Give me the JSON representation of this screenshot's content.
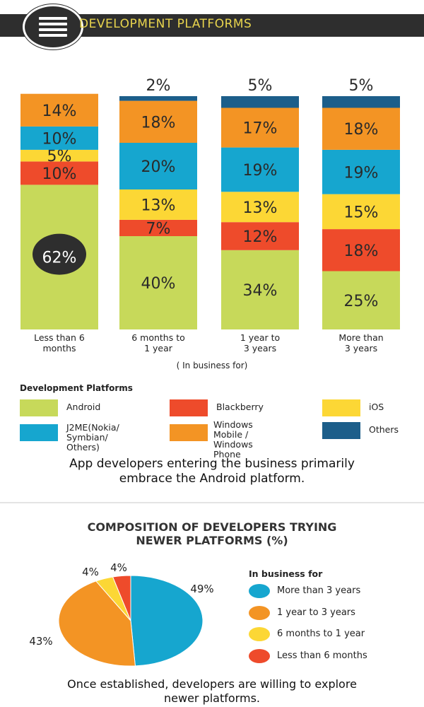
{
  "header": {
    "title": "DEVELOPMENT PLATFORMS"
  },
  "colors": {
    "Android": "#c7d95a",
    "Blackberry": "#ee4b2b",
    "iOS": "#fcd735",
    "J2ME": "#16a6cf",
    "Windows": "#f39424",
    "Others": "#1c5e8a"
  },
  "chart_data": [
    {
      "type": "bar",
      "stacked": true,
      "categories": [
        "Less than 6\nmonths",
        "6 months to\n1 year",
        "1 year to\n3 years",
        "More than\n3 years"
      ],
      "series": [
        {
          "name": "Android",
          "color": "#c7d95a",
          "values": [
            62,
            40,
            34,
            25
          ]
        },
        {
          "name": "Blackberry",
          "color": "#ee4b2b",
          "values": [
            10,
            7,
            12,
            18
          ]
        },
        {
          "name": "iOS",
          "color": "#fcd735",
          "values": [
            5,
            13,
            13,
            15
          ]
        },
        {
          "name": "J2ME(Nokia/\nSymbian/ Others)",
          "color": "#16a6cf",
          "values": [
            10,
            20,
            19,
            19
          ]
        },
        {
          "name": "Windows Mobile /\nWindows Phone",
          "color": "#f39424",
          "values": [
            14,
            18,
            17,
            18
          ]
        },
        {
          "name": "Others",
          "color": "#1c5e8a",
          "values": [
            0,
            2,
            5,
            5
          ]
        }
      ],
      "value_labels": [
        [
          "62%",
          "40%",
          "34%",
          "25%"
        ],
        [
          "10%",
          "7%",
          "12%",
          "18%"
        ],
        [
          "5%",
          "13%",
          "13%",
          "15%"
        ],
        [
          "10%",
          "20%",
          "19%",
          "19%"
        ],
        [
          "14%",
          "18%",
          "17%",
          "18%"
        ],
        [
          "",
          "2%",
          "5%",
          "5%"
        ]
      ],
      "xlabel": "( In business for)",
      "legend_title": "Development Platforms"
    },
    {
      "type": "pie",
      "title": "COMPOSITION OF DEVELOPERS TRYING\nNEWER PLATFORMS (%)",
      "legend_title": "In business for",
      "slices": [
        {
          "label": "More than 3 years",
          "value": 49,
          "display": "49%",
          "color": "#16a6cf"
        },
        {
          "label": "1 year to 3 years",
          "value": 43,
          "display": "43%",
          "color": "#f39424"
        },
        {
          "label": "6 months to 1 year",
          "value": 4,
          "display": "4%",
          "color": "#fcd735"
        },
        {
          "label": "Less than 6 months",
          "value": 4,
          "display": "4%",
          "color": "#ee4b2b"
        }
      ]
    }
  ],
  "axis_caption": "( In business for)",
  "legend": {
    "title": "Development Platforms",
    "items": [
      {
        "label": "Android",
        "color": "#c7d95a"
      },
      {
        "label": "Blackberry",
        "color": "#ee4b2b"
      },
      {
        "label": "iOS",
        "color": "#fcd735"
      },
      {
        "label": "J2ME(Nokia/\nSymbian/ Others)",
        "color": "#16a6cf"
      },
      {
        "label": "Windows Mobile /\nWindows Phone",
        "color": "#f39424"
      },
      {
        "label": "Others",
        "color": "#1c5e8a"
      }
    ]
  },
  "caption1": "App developers entering the business primarily\nembrace the Android platform.",
  "pie_title": "COMPOSITION OF DEVELOPERS TRYING\nNEWER PLATFORMS (%)",
  "pie_legend_title": "In business for",
  "caption2": "Once established, developers are willing to explore\nnewer platforms."
}
